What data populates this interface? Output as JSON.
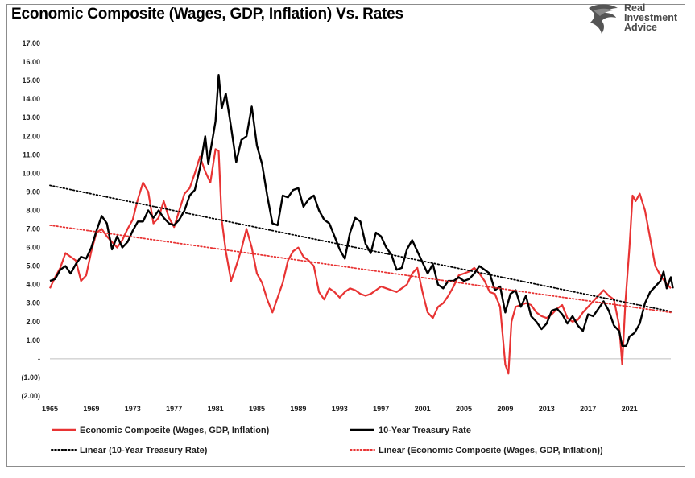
{
  "colors": {
    "composite": "#e83333",
    "treasury": "#000000",
    "composite_trend": "#e83333",
    "treasury_trend": "#000000"
  },
  "logo": {
    "line1": "Real",
    "line2": "Investment",
    "line3": "Advice",
    "icon": "eagle-head-icon"
  },
  "chart_data": {
    "type": "line",
    "title": "Economic Composite (Wages, GDP, Inflation) Vs. Rates",
    "xlabel": "",
    "ylabel": "",
    "xlim": [
      1965,
      2025
    ],
    "ylim": [
      -2,
      17
    ],
    "ytick_values": [
      -2,
      -1,
      0,
      1,
      2,
      3,
      4,
      5,
      6,
      7,
      8,
      9,
      10,
      11,
      12,
      13,
      14,
      15,
      16,
      17
    ],
    "ytick_labels": [
      "(2.00)",
      "(1.00)",
      "-",
      "1.00",
      "2.00",
      "3.00",
      "4.00",
      "5.00",
      "6.00",
      "7.00",
      "8.00",
      "9.00",
      "10.00",
      "11.00",
      "12.00",
      "13.00",
      "14.00",
      "15.00",
      "16.00",
      "17.00"
    ],
    "xtick_values": [
      1965,
      1969,
      1973,
      1977,
      1981,
      1985,
      1989,
      1993,
      1997,
      2001,
      2005,
      2009,
      2013,
      2017,
      2021
    ],
    "xtick_labels": [
      "1965",
      "1969",
      "1973",
      "1977",
      "1981",
      "1985",
      "1989",
      "1993",
      "1997",
      "2001",
      "2005",
      "2009",
      "2013",
      "2017",
      "2021"
    ],
    "grid": false,
    "legend_position": "bottom",
    "series": [
      {
        "name": "Economic Composite (Wages, GDP, Inflation)",
        "style": "solid",
        "points": [
          [
            1965,
            3.8
          ],
          [
            1965.5,
            4.4
          ],
          [
            1966,
            4.9
          ],
          [
            1966.5,
            5.7
          ],
          [
            1967,
            5.5
          ],
          [
            1967.5,
            5.3
          ],
          [
            1968,
            4.2
          ],
          [
            1968.5,
            4.5
          ],
          [
            1969,
            5.8
          ],
          [
            1969.5,
            6.8
          ],
          [
            1970,
            7.0
          ],
          [
            1970.5,
            6.6
          ],
          [
            1971,
            6.3
          ],
          [
            1971.5,
            6.0
          ],
          [
            1972,
            6.4
          ],
          [
            1972.5,
            7.0
          ],
          [
            1973,
            7.5
          ],
          [
            1973.5,
            8.6
          ],
          [
            1974,
            9.5
          ],
          [
            1974.5,
            9.0
          ],
          [
            1975,
            7.3
          ],
          [
            1975.5,
            7.6
          ],
          [
            1976,
            8.5
          ],
          [
            1976.5,
            7.6
          ],
          [
            1977,
            7.1
          ],
          [
            1977.5,
            8.0
          ],
          [
            1978,
            8.9
          ],
          [
            1978.5,
            9.2
          ],
          [
            1979,
            10.0
          ],
          [
            1979.5,
            10.9
          ],
          [
            1980,
            10.1
          ],
          [
            1980.5,
            9.5
          ],
          [
            1981,
            11.3
          ],
          [
            1981.3,
            11.2
          ],
          [
            1981.6,
            7.5
          ],
          [
            1982,
            5.8
          ],
          [
            1982.5,
            4.2
          ],
          [
            1983,
            5.0
          ],
          [
            1983.5,
            5.9
          ],
          [
            1984,
            7.0
          ],
          [
            1984.5,
            6.0
          ],
          [
            1985,
            4.6
          ],
          [
            1985.5,
            4.1
          ],
          [
            1986,
            3.2
          ],
          [
            1986.5,
            2.5
          ],
          [
            1987,
            3.3
          ],
          [
            1987.5,
            4.1
          ],
          [
            1988,
            5.3
          ],
          [
            1988.5,
            5.8
          ],
          [
            1989,
            6.0
          ],
          [
            1989.5,
            5.5
          ],
          [
            1990,
            5.3
          ],
          [
            1990.5,
            5.0
          ],
          [
            1991,
            3.6
          ],
          [
            1991.5,
            3.2
          ],
          [
            1992,
            3.8
          ],
          [
            1992.5,
            3.6
          ],
          [
            1993,
            3.3
          ],
          [
            1993.5,
            3.6
          ],
          [
            1994,
            3.8
          ],
          [
            1994.5,
            3.7
          ],
          [
            1995,
            3.5
          ],
          [
            1995.5,
            3.4
          ],
          [
            1996,
            3.5
          ],
          [
            1996.5,
            3.7
          ],
          [
            1997,
            3.9
          ],
          [
            1997.5,
            3.8
          ],
          [
            1998,
            3.7
          ],
          [
            1998.5,
            3.6
          ],
          [
            1999,
            3.8
          ],
          [
            1999.5,
            4.0
          ],
          [
            2000,
            4.6
          ],
          [
            2000.5,
            4.9
          ],
          [
            2001,
            3.6
          ],
          [
            2001.5,
            2.5
          ],
          [
            2002,
            2.2
          ],
          [
            2002.5,
            2.8
          ],
          [
            2003,
            3.0
          ],
          [
            2003.5,
            3.4
          ],
          [
            2004,
            3.9
          ],
          [
            2004.5,
            4.5
          ],
          [
            2005,
            4.6
          ],
          [
            2005.5,
            4.7
          ],
          [
            2006,
            4.9
          ],
          [
            2006.5,
            4.6
          ],
          [
            2007,
            4.2
          ],
          [
            2007.5,
            3.6
          ],
          [
            2008,
            3.5
          ],
          [
            2008.5,
            2.8
          ],
          [
            2009,
            -0.3
          ],
          [
            2009.3,
            -0.8
          ],
          [
            2009.6,
            2.0
          ],
          [
            2010,
            2.8
          ],
          [
            2010.5,
            2.9
          ],
          [
            2011,
            3.0
          ],
          [
            2011.5,
            2.9
          ],
          [
            2012,
            2.5
          ],
          [
            2012.5,
            2.3
          ],
          [
            2013,
            2.2
          ],
          [
            2013.5,
            2.4
          ],
          [
            2014,
            2.7
          ],
          [
            2014.5,
            2.9
          ],
          [
            2015,
            2.2
          ],
          [
            2015.5,
            2.0
          ],
          [
            2016,
            2.1
          ],
          [
            2016.5,
            2.5
          ],
          [
            2017,
            2.8
          ],
          [
            2017.5,
            3.1
          ],
          [
            2018,
            3.4
          ],
          [
            2018.5,
            3.7
          ],
          [
            2019,
            3.4
          ],
          [
            2019.5,
            3.2
          ],
          [
            2020,
            1.8
          ],
          [
            2020.3,
            -0.3
          ],
          [
            2020.6,
            3.0
          ],
          [
            2021,
            6.0
          ],
          [
            2021.3,
            8.8
          ],
          [
            2021.6,
            8.5
          ],
          [
            2022,
            8.9
          ],
          [
            2022.5,
            8.0
          ],
          [
            2023,
            6.5
          ],
          [
            2023.5,
            5.0
          ],
          [
            2024,
            4.5
          ],
          [
            2024.5,
            4.1
          ],
          [
            2025,
            3.8
          ]
        ]
      },
      {
        "name": "10-Year Treasury Rate",
        "style": "solid",
        "points": [
          [
            1965,
            4.2
          ],
          [
            1965.5,
            4.3
          ],
          [
            1966,
            4.8
          ],
          [
            1966.5,
            5.0
          ],
          [
            1967,
            4.6
          ],
          [
            1967.5,
            5.1
          ],
          [
            1968,
            5.5
          ],
          [
            1968.5,
            5.4
          ],
          [
            1969,
            6.0
          ],
          [
            1969.5,
            6.9
          ],
          [
            1970,
            7.7
          ],
          [
            1970.5,
            7.3
          ],
          [
            1971,
            5.9
          ],
          [
            1971.5,
            6.6
          ],
          [
            1972,
            6.0
          ],
          [
            1972.5,
            6.3
          ],
          [
            1973,
            6.9
          ],
          [
            1973.5,
            7.4
          ],
          [
            1974,
            7.4
          ],
          [
            1974.5,
            8.0
          ],
          [
            1975,
            7.6
          ],
          [
            1975.5,
            8.0
          ],
          [
            1976,
            7.6
          ],
          [
            1976.5,
            7.3
          ],
          [
            1977,
            7.2
          ],
          [
            1977.5,
            7.5
          ],
          [
            1978,
            8.0
          ],
          [
            1978.5,
            8.8
          ],
          [
            1979,
            9.1
          ],
          [
            1979.5,
            10.3
          ],
          [
            1980,
            12.0
          ],
          [
            1980.3,
            10.5
          ],
          [
            1980.7,
            11.8
          ],
          [
            1981,
            12.8
          ],
          [
            1981.3,
            15.3
          ],
          [
            1981.6,
            13.5
          ],
          [
            1982,
            14.3
          ],
          [
            1982.5,
            12.5
          ],
          [
            1983,
            10.6
          ],
          [
            1983.5,
            11.8
          ],
          [
            1984,
            12.0
          ],
          [
            1984.5,
            13.6
          ],
          [
            1985,
            11.5
          ],
          [
            1985.5,
            10.5
          ],
          [
            1986,
            8.8
          ],
          [
            1986.5,
            7.3
          ],
          [
            1987,
            7.2
          ],
          [
            1987.5,
            8.8
          ],
          [
            1988,
            8.7
          ],
          [
            1988.5,
            9.1
          ],
          [
            1989,
            9.2
          ],
          [
            1989.5,
            8.2
          ],
          [
            1990,
            8.6
          ],
          [
            1990.5,
            8.8
          ],
          [
            1991,
            8.0
          ],
          [
            1991.5,
            7.5
          ],
          [
            1992,
            7.3
          ],
          [
            1992.5,
            6.6
          ],
          [
            1993,
            5.9
          ],
          [
            1993.5,
            5.4
          ],
          [
            1994,
            6.8
          ],
          [
            1994.5,
            7.6
          ],
          [
            1995,
            7.4
          ],
          [
            1995.5,
            6.2
          ],
          [
            1996,
            5.7
          ],
          [
            1996.5,
            6.8
          ],
          [
            1997,
            6.6
          ],
          [
            1997.5,
            6.0
          ],
          [
            1998,
            5.6
          ],
          [
            1998.5,
            4.8
          ],
          [
            1999,
            4.9
          ],
          [
            1999.5,
            5.9
          ],
          [
            2000,
            6.4
          ],
          [
            2000.5,
            5.8
          ],
          [
            2001,
            5.2
          ],
          [
            2001.5,
            4.6
          ],
          [
            2002,
            5.1
          ],
          [
            2002.5,
            4.0
          ],
          [
            2003,
            3.8
          ],
          [
            2003.5,
            4.2
          ],
          [
            2004,
            4.2
          ],
          [
            2004.5,
            4.4
          ],
          [
            2005,
            4.2
          ],
          [
            2005.5,
            4.3
          ],
          [
            2006,
            4.6
          ],
          [
            2006.5,
            5.0
          ],
          [
            2007,
            4.8
          ],
          [
            2007.5,
            4.6
          ],
          [
            2008,
            3.7
          ],
          [
            2008.5,
            3.9
          ],
          [
            2009,
            2.5
          ],
          [
            2009.5,
            3.5
          ],
          [
            2010,
            3.7
          ],
          [
            2010.5,
            2.8
          ],
          [
            2011,
            3.4
          ],
          [
            2011.5,
            2.3
          ],
          [
            2012,
            2.0
          ],
          [
            2012.5,
            1.6
          ],
          [
            2013,
            1.9
          ],
          [
            2013.5,
            2.6
          ],
          [
            2014,
            2.7
          ],
          [
            2014.5,
            2.4
          ],
          [
            2015,
            1.9
          ],
          [
            2015.5,
            2.3
          ],
          [
            2016,
            1.8
          ],
          [
            2016.5,
            1.5
          ],
          [
            2017,
            2.4
          ],
          [
            2017.5,
            2.3
          ],
          [
            2018,
            2.7
          ],
          [
            2018.5,
            3.1
          ],
          [
            2019,
            2.6
          ],
          [
            2019.5,
            1.8
          ],
          [
            2020,
            1.5
          ],
          [
            2020.3,
            0.7
          ],
          [
            2020.7,
            0.7
          ],
          [
            2021,
            1.2
          ],
          [
            2021.5,
            1.4
          ],
          [
            2022,
            1.9
          ],
          [
            2022.5,
            3.0
          ],
          [
            2023,
            3.6
          ],
          [
            2023.5,
            3.9
          ],
          [
            2024,
            4.2
          ],
          [
            2024.3,
            4.7
          ],
          [
            2024.6,
            3.8
          ],
          [
            2025,
            4.4
          ],
          [
            2025.2,
            3.8
          ]
        ]
      },
      {
        "name": "Linear (10-Year Treasury Rate)",
        "style": "dotted",
        "points": [
          [
            1965,
            9.35
          ],
          [
            2025,
            2.55
          ]
        ]
      },
      {
        "name": "Linear (Economic Composite (Wages, GDP, Inflation))",
        "style": "dotted",
        "points": [
          [
            1965,
            7.2
          ],
          [
            2025,
            2.5
          ]
        ]
      }
    ]
  }
}
